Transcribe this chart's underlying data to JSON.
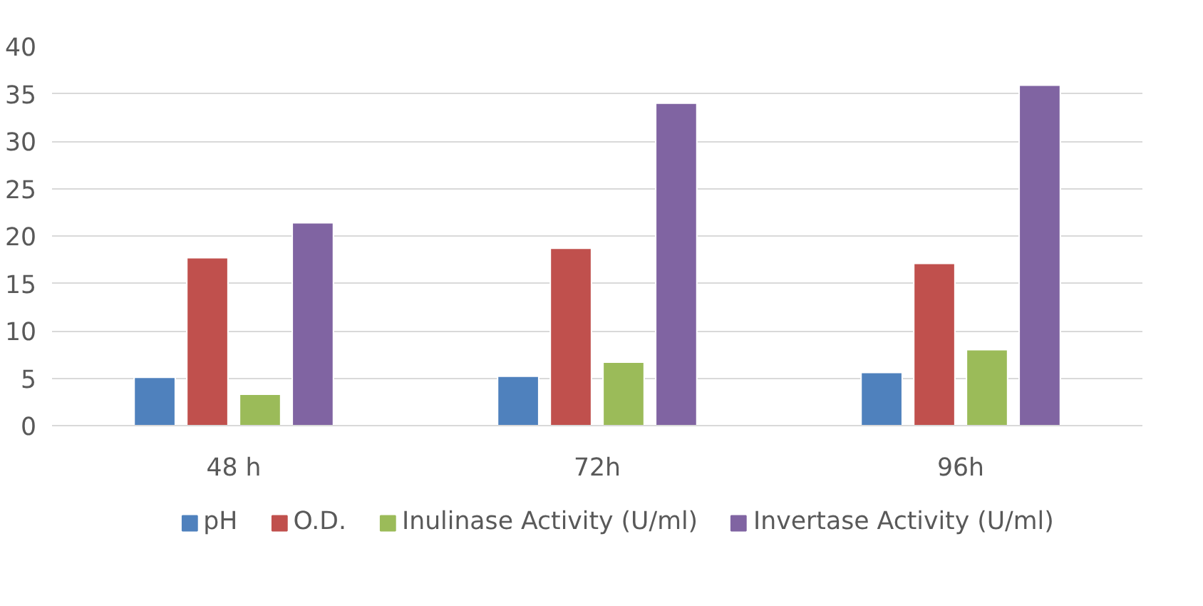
{
  "chart_data": {
    "type": "bar",
    "categories": [
      "48 h",
      "72h",
      "96h"
    ],
    "series": [
      {
        "name": "pH",
        "color": "#4f81bd",
        "values": [
          5.1,
          5.2,
          5.6
        ]
      },
      {
        "name": "O.D.",
        "color": "#c0504d",
        "values": [
          17.7,
          18.7,
          17.1
        ]
      },
      {
        "name": "Inulinase Activity (U/ml)",
        "color": "#9bbb59",
        "values": [
          3.3,
          6.7,
          8.0
        ]
      },
      {
        "name": "Invertase Activity (U/ml)",
        "color": "#8064a2",
        "values": [
          21.4,
          34.0,
          35.9
        ]
      }
    ],
    "ylim": [
      0,
      40
    ],
    "yticks": [
      0,
      5,
      10,
      15,
      20,
      25,
      30,
      35,
      40
    ],
    "grid": "y",
    "legend": "bottom"
  }
}
